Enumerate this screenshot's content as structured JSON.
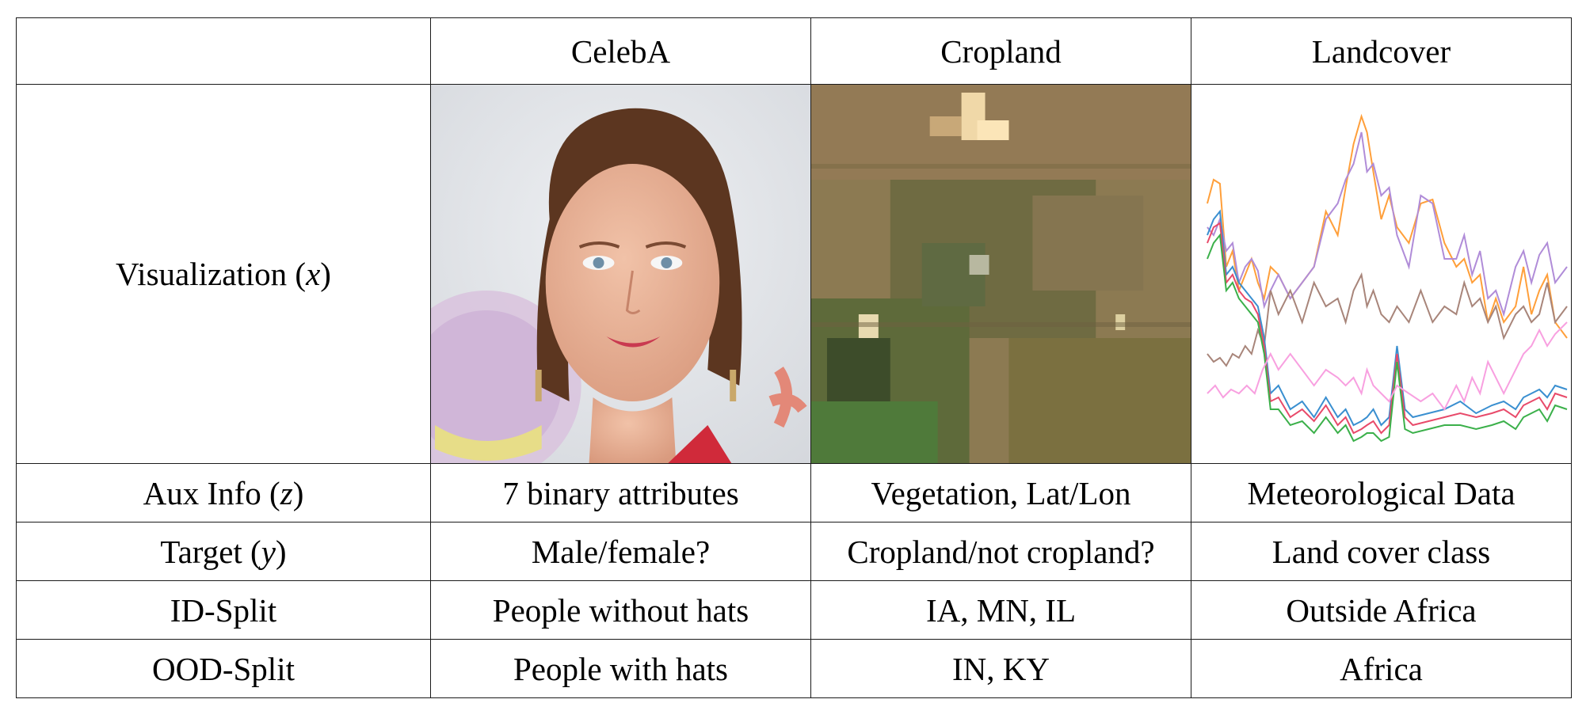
{
  "header": {
    "corner": "",
    "columns": [
      "CelebA",
      "Cropland",
      "Landcover"
    ]
  },
  "visualization_row": {
    "label_prefix": "Visualization (",
    "label_var": "x",
    "label_suffix": ")"
  },
  "rows": [
    {
      "label_prefix": "Aux Info (",
      "label_var": "z",
      "label_suffix": ")",
      "values": [
        "7 binary attributes",
        "Vegetation, Lat/Lon",
        "Meteorological Data"
      ]
    },
    {
      "label_prefix": "Target (",
      "label_var": "y",
      "label_suffix": ")",
      "values": [
        "Male/female?",
        "Cropland/not cropland?",
        "Land cover class"
      ]
    },
    {
      "label": "ID-Split",
      "values": [
        "People without hats",
        "IA, MN, IL",
        "Outside Africa"
      ]
    },
    {
      "label": "OOD-Split",
      "values": [
        "People with hats",
        "IN, KY",
        "Africa"
      ]
    }
  ],
  "images": {
    "celeba": "face-photo",
    "cropland": "satellite-tile",
    "landcover": "multi-line-time-series"
  },
  "landcover_series_colors": [
    "#ff9f3a",
    "#b08cd8",
    "#a8857a",
    "#3a8fd0",
    "#e84a6a",
    "#3bb04a",
    "#f8a0e0"
  ]
}
